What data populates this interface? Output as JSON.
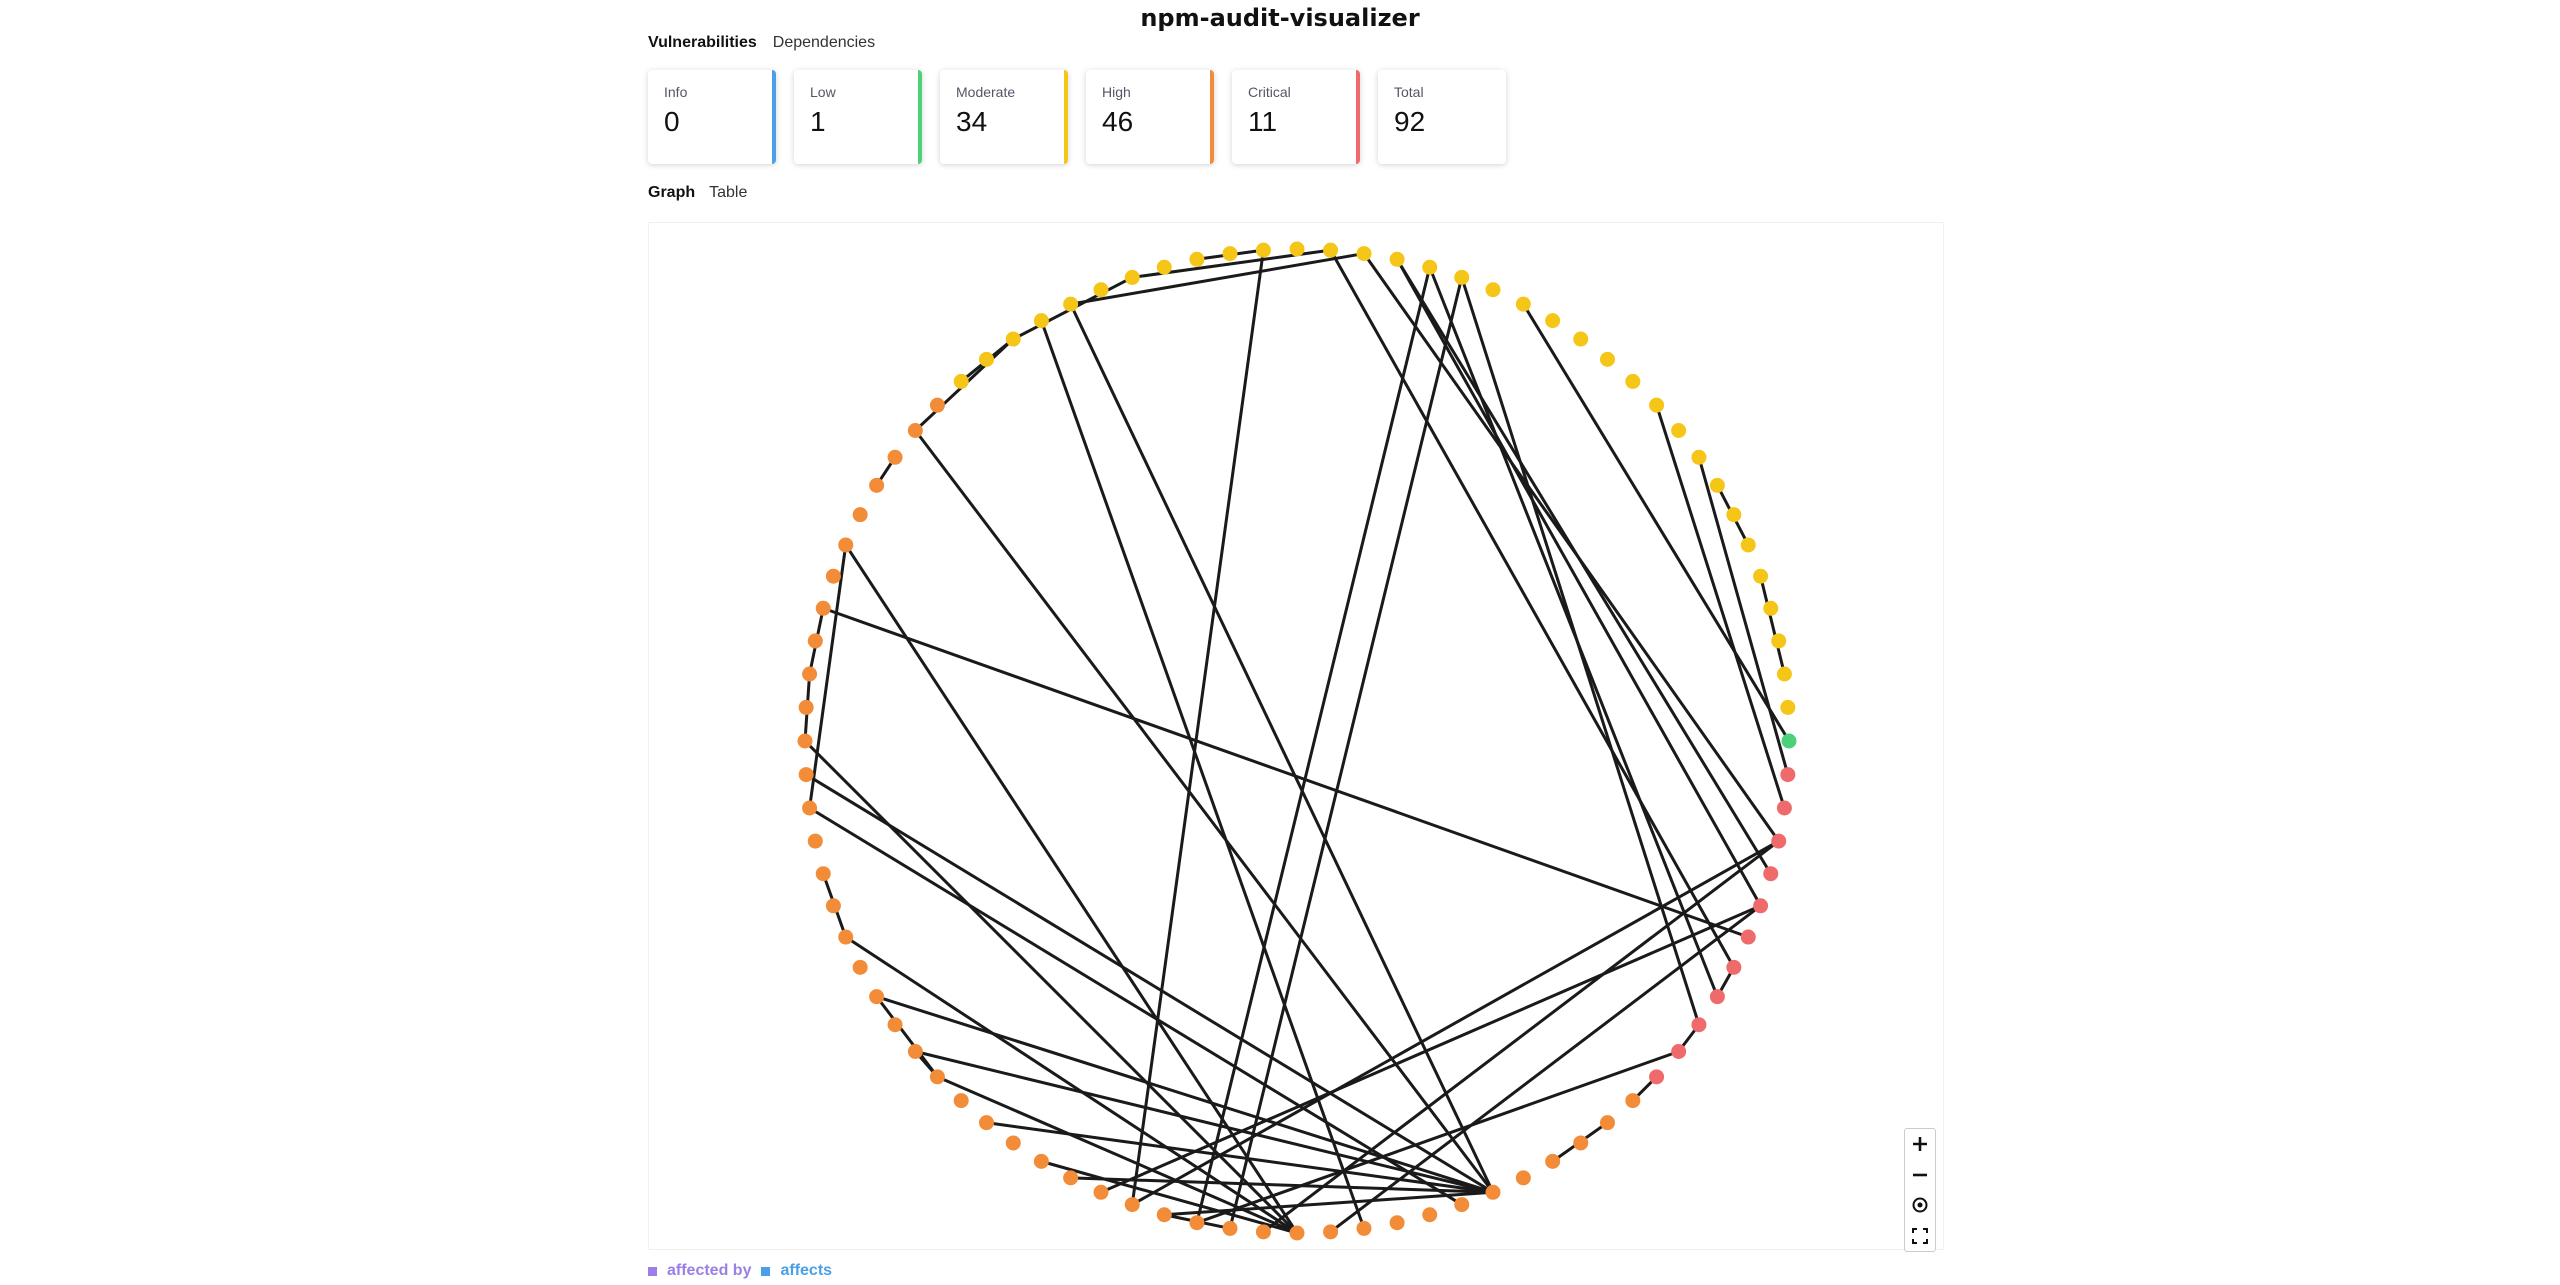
{
  "app": {
    "title": "npm-audit-visualizer"
  },
  "top_tabs": [
    {
      "label": "Vulnerabilities",
      "active": true
    },
    {
      "label": "Dependencies",
      "active": false
    }
  ],
  "summary_cards": [
    {
      "label": "Info",
      "value": "0",
      "color": "#4a9fe8"
    },
    {
      "label": "Low",
      "value": "1",
      "color": "#4cd07a"
    },
    {
      "label": "Moderate",
      "value": "34",
      "color": "#f5c518"
    },
    {
      "label": "High",
      "value": "46",
      "color": "#f28c38"
    },
    {
      "label": "Critical",
      "value": "11",
      "color": "#ef6b6b"
    },
    {
      "label": "Total",
      "value": "92",
      "color": "#dddddd"
    }
  ],
  "view_tabs": [
    {
      "label": "Graph",
      "active": true
    },
    {
      "label": "Table",
      "active": false
    }
  ],
  "graph": {
    "severity_colors": {
      "moderate": "#f5c518",
      "low": "#4cd07a",
      "critical": "#ef6b6b",
      "high": "#f28c38"
    },
    "edge_color": "#1a1a1a"
  },
  "zoom_controls": [
    {
      "name": "zoom-in-icon",
      "glyph": "+"
    },
    {
      "name": "zoom-out-icon",
      "glyph": "−"
    },
    {
      "name": "center-icon",
      "glyph": "⊙"
    },
    {
      "name": "fullscreen-icon",
      "glyph": "⛶"
    }
  ],
  "legend": [
    {
      "label": "affected by",
      "color": "#9b7ee6"
    },
    {
      "label": "affects",
      "color": "#4a9fe8"
    }
  ]
}
